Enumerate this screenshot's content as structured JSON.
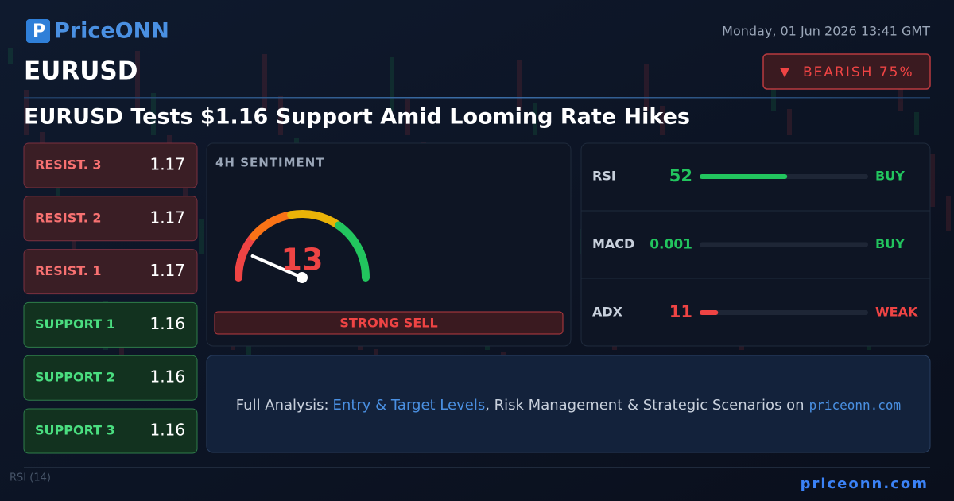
{
  "header": {
    "logo": "PriceONN",
    "datetime": "Monday, 01 Jun 2026 13:41 GMT",
    "symbol": "EURUSD",
    "bias": "BEARISH 75%",
    "headline": "EURUSD Tests $1.16 Support Amid Looming Rate Hikes"
  },
  "levels": [
    {
      "label": "RESIST. 3",
      "value": 1.17,
      "kind": "resistance"
    },
    {
      "label": "RESIST. 2",
      "value": 1.17,
      "kind": "resistance"
    },
    {
      "label": "RESIST. 1",
      "value": 1.17,
      "kind": "resistance"
    },
    {
      "label": "SUPPORT 1",
      "value": 1.16,
      "kind": "support"
    },
    {
      "label": "SUPPORT 2",
      "value": 1.16,
      "kind": "support"
    },
    {
      "label": "SUPPORT 3",
      "value": 1.16,
      "kind": "support"
    }
  ],
  "sentiment": {
    "title": "4H SENTIMENT",
    "value": 13,
    "range": [
      0,
      100
    ],
    "signal": "STRONG SELL",
    "color": "#ef4444"
  },
  "indicator_range": [
    0,
    100
  ],
  "indicators": [
    {
      "name": "RSI",
      "value": 52,
      "signal": "BUY",
      "color": "#22c55e"
    },
    {
      "name": "MACD",
      "value": 0.001,
      "signal": "BUY",
      "color": "#22c55e"
    },
    {
      "name": "ADX",
      "value": 11,
      "signal": "WEAK",
      "color": "#ef4444"
    }
  ],
  "cta": {
    "lead": "Full Analysis:",
    "link": "Entry & Target Levels",
    "middle": ", Risk Management & Strategic Scenarios on",
    "site": "priceonn.com"
  },
  "footer": {
    "site": "priceonn.com"
  },
  "background": {
    "label": "RSI (14)"
  }
}
